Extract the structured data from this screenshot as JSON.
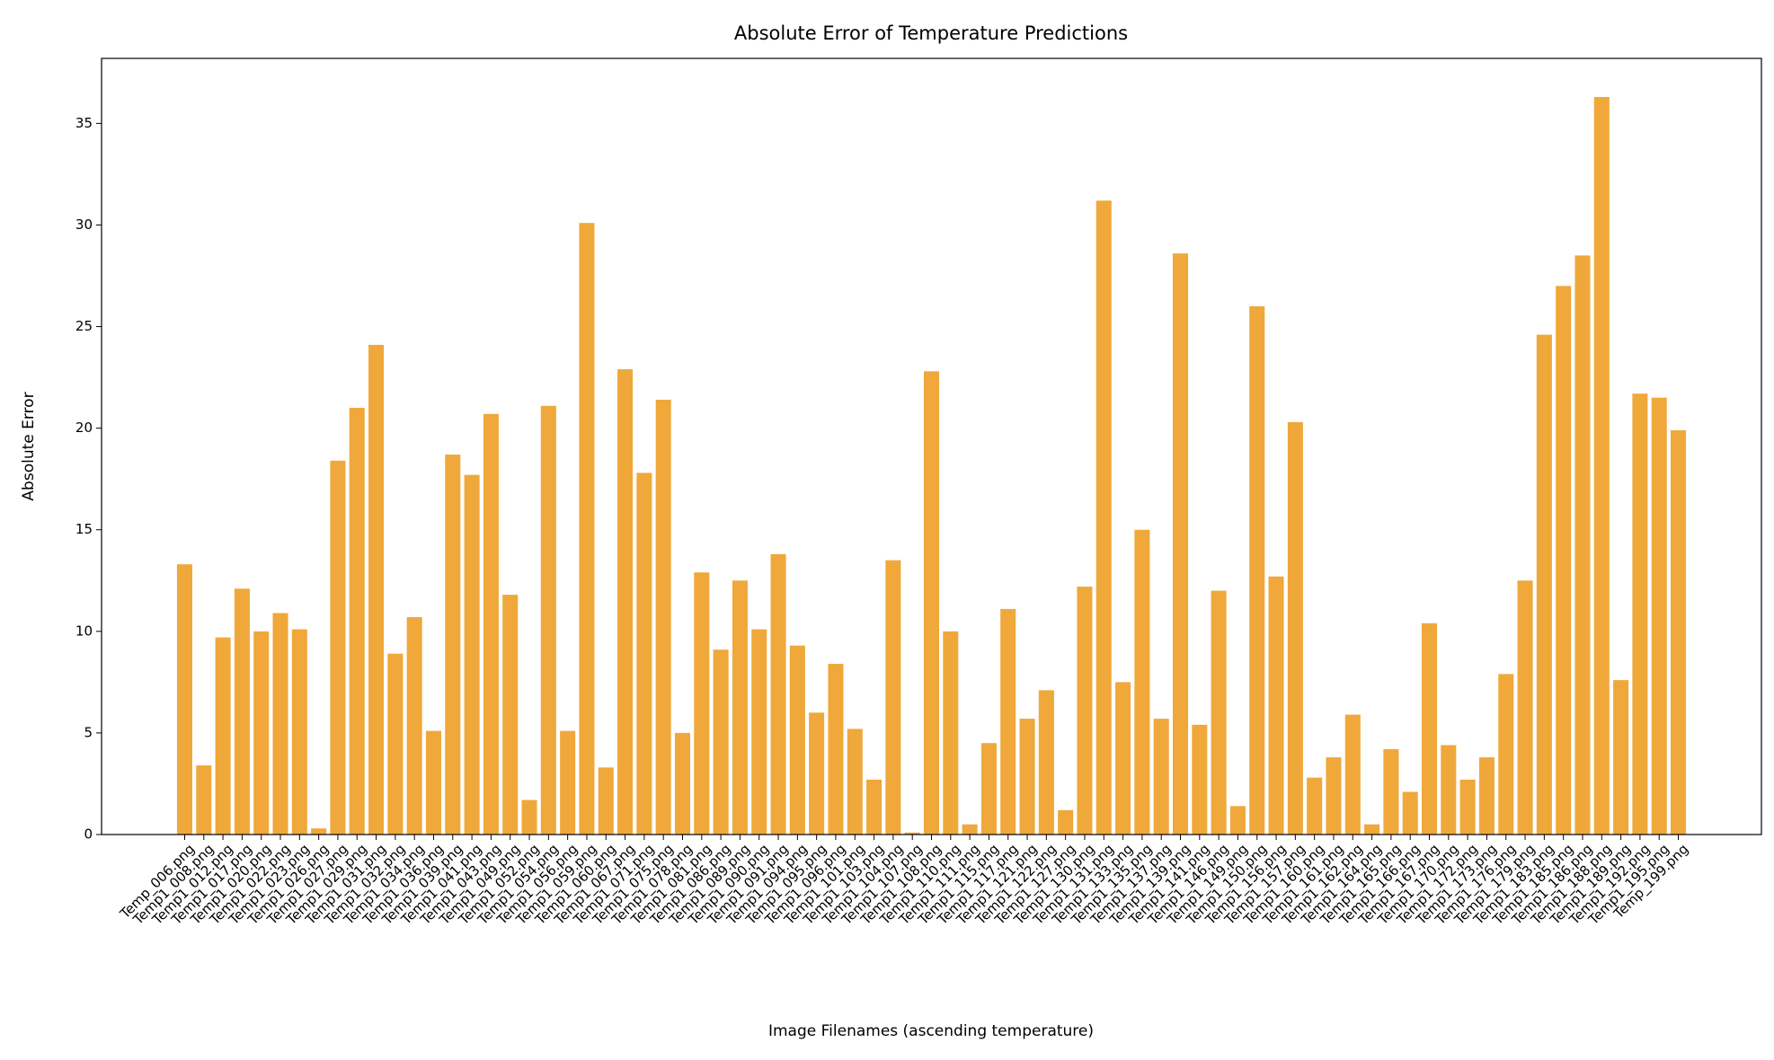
{
  "chart_data": {
    "type": "bar",
    "title": "Absolute Error of Temperature Predictions",
    "xlabel": "Image Filenames (ascending temperature)",
    "ylabel": "Absolute Error",
    "color": "#f0a83b",
    "categories": [
      "Temp_006.png",
      "Temp1_008.png",
      "Temp1_012.png",
      "Temp1_017.png",
      "Temp1_020.png",
      "Temp1_022.png",
      "Temp1_023.png",
      "Temp1_026.png",
      "Temp1_027.png",
      "Temp1_029.png",
      "Temp1_031.png",
      "Temp1_032.png",
      "Temp1_034.png",
      "Temp1_036.png",
      "Temp1_039.png",
      "Temp1_041.png",
      "Temp1_043.png",
      "Temp1_049.png",
      "Temp1_052.png",
      "Temp1_054.png",
      "Temp1_056.png",
      "Temp1_059.png",
      "Temp1_060.png",
      "Temp1_067.png",
      "Temp1_071.png",
      "Temp1_075.png",
      "Temp1_078.png",
      "Temp1_081.png",
      "Temp1_086.png",
      "Temp1_089.png",
      "Temp1_090.png",
      "Temp1_091.png",
      "Temp1_094.png",
      "Temp1_095.png",
      "Temp1_096.png",
      "Temp1_101.png",
      "Temp1_103.png",
      "Temp1_104.png",
      "Temp1_107.png",
      "Temp1_108.png",
      "Temp1_110.png",
      "Temp1_111.png",
      "Temp1_115.png",
      "Temp1_117.png",
      "Temp1_121.png",
      "Temp1_122.png",
      "Temp1_127.png",
      "Temp1_130.png",
      "Temp1_131.png",
      "Temp1_133.png",
      "Temp1_135.png",
      "Temp1_137.png",
      "Temp1_139.png",
      "Temp1_141.png",
      "Temp1_146.png",
      "Temp1_149.png",
      "Temp1_150.png",
      "Temp1_156.png",
      "Temp1_157.png",
      "Temp1_160.png",
      "Temp1_161.png",
      "Temp1_162.png",
      "Temp1_164.png",
      "Temp1_165.png",
      "Temp1_166.png",
      "Temp1_167.png",
      "Temp1_170.png",
      "Temp1_172.png",
      "Temp1_173.png",
      "Temp1_176.png",
      "Temp1_179.png",
      "Temp1_183.png",
      "Temp1_185.png",
      "Temp1_186.png",
      "Temp1_188.png",
      "Temp1_189.png",
      "Temp1_192.png",
      "Temp1_195.png",
      "Temp_199.png"
    ],
    "values": [
      13.3,
      3.4,
      9.7,
      12.1,
      10.0,
      10.9,
      10.1,
      0.3,
      18.4,
      21.0,
      24.1,
      8.9,
      10.7,
      5.1,
      18.7,
      17.7,
      20.7,
      11.8,
      1.7,
      21.1,
      5.1,
      30.1,
      3.3,
      22.9,
      17.8,
      21.4,
      5.0,
      12.9,
      9.1,
      12.5,
      10.1,
      13.8,
      9.3,
      6.0,
      8.4,
      5.2,
      2.7,
      13.5,
      0.1,
      22.8,
      10.0,
      0.5,
      4.5,
      11.1,
      5.7,
      7.1,
      1.2,
      12.2,
      31.2,
      7.5,
      15.0,
      5.7,
      28.6,
      5.4,
      12.0,
      1.4,
      26.0,
      12.7,
      20.3,
      2.8,
      3.8,
      5.9,
      0.5,
      4.2,
      2.1,
      10.4,
      4.4,
      2.7,
      3.8,
      7.9,
      12.5,
      24.6,
      27.0,
      28.5,
      36.3,
      7.6,
      21.7,
      21.5,
      19.9
    ],
    "ylim": [
      0,
      38.2
    ],
    "yticks": [
      0,
      5,
      10,
      15,
      20,
      25,
      30,
      35
    ]
  }
}
